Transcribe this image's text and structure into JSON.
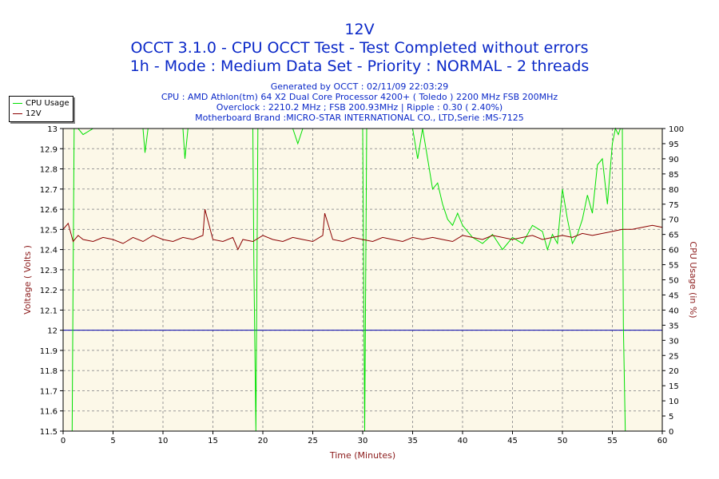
{
  "titles": {
    "main": "12V",
    "line2": "OCCT 3.1.0 - CPU OCCT Test - Test Completed without errors",
    "line3": "1h - Mode : Medium Data Set - Priority : NORMAL - 2 threads"
  },
  "info": {
    "generated": "Generated by OCCT : 02/11/09 22:03:29",
    "cpu": "CPU : AMD Athlon(tm) 64 X2 Dual Core Processor 4200+ ( Toledo ) 2200 MHz FSB 200MHz",
    "overclock": "Overclock : 2210.2 MHz ; FSB 200.93MHz | Ripple : 0.30 ( 2.40%)",
    "motherboard": "Motherboard Brand :MICRO-STAR INTERNATIONAL CO., LTD,Serie :MS-7125"
  },
  "colors": {
    "title": "#0a28c8",
    "axis_label": "#8b1a1a",
    "cpu_line": "#00e000",
    "volt_line": "#8b0000",
    "ref_line": "#0000aa",
    "plot_bg": "#fcf8e8"
  },
  "legend": {
    "items": [
      {
        "label": "CPU Usage",
        "color": "#00e000"
      },
      {
        "label": "12V",
        "color": "#8b0000"
      }
    ]
  },
  "chart_data": {
    "type": "line",
    "xlabel": "Time (Minutes)",
    "ylabel_left": "Voltage ( Volts )",
    "ylabel_right": "CPU Usage (in %)",
    "xlim": [
      0,
      60
    ],
    "ylim_left": [
      11.5,
      13
    ],
    "ylim_right": [
      0,
      100
    ],
    "x_ticks": [
      0,
      5,
      10,
      15,
      20,
      25,
      30,
      35,
      40,
      45,
      50,
      55,
      60
    ],
    "y_ticks_left": [
      11.5,
      11.6,
      11.7,
      11.8,
      11.9,
      12,
      12.1,
      12.2,
      12.3,
      12.4,
      12.5,
      12.6,
      12.7,
      12.8,
      12.9,
      13
    ],
    "y_tick_labels_left": [
      "11.5",
      "11.6",
      "11.7",
      "11.8",
      "11.9",
      "12",
      "12.1",
      "12.2",
      "12.3",
      "12.4",
      "12.5",
      "12.6",
      "12.7",
      "12.8",
      "12.9",
      "13"
    ],
    "y_ticks_right": [
      0,
      5,
      10,
      15,
      20,
      25,
      30,
      35,
      40,
      45,
      50,
      55,
      60,
      65,
      70,
      75,
      80,
      85,
      90,
      95,
      100
    ],
    "grid": true,
    "reference_line": {
      "axis": "left",
      "value": 12
    },
    "series": [
      {
        "name": "CPU Usage",
        "axis": "right",
        "x": [
          0,
          0.5,
          0.9,
          1.0,
          1.1,
          1.2,
          1.5,
          2,
          3,
          4,
          5,
          6,
          7,
          8,
          8.2,
          8.5,
          9,
          10,
          11,
          12,
          12.2,
          12.5,
          13,
          14,
          15,
          16,
          17,
          18,
          19,
          19.1,
          19.3,
          19.5,
          19.7,
          20,
          21,
          22,
          23,
          23.5,
          24,
          25,
          26,
          27,
          28,
          29,
          30,
          30.2,
          30.4,
          30.6,
          31,
          32,
          33,
          34,
          35,
          35.5,
          36,
          36.5,
          37,
          37.5,
          38,
          38.5,
          39,
          39.5,
          40,
          41,
          42,
          43,
          44,
          45,
          46,
          47,
          48,
          48.5,
          49,
          49.5,
          50,
          50.5,
          51,
          51.5,
          52,
          52.5,
          53,
          53.5,
          54,
          54.5,
          55,
          55.3,
          55.6,
          55.8,
          56,
          56.1,
          56.3,
          56.5,
          57,
          58,
          59,
          60
        ],
        "values": [
          0,
          0,
          0,
          50,
          100,
          100,
          100,
          98,
          100,
          100,
          100,
          100,
          100,
          100,
          92,
          100,
          100,
          100,
          100,
          100,
          90,
          100,
          100,
          100,
          100,
          100,
          100,
          100,
          100,
          55,
          0,
          100,
          100,
          100,
          100,
          100,
          100,
          95,
          100,
          100,
          100,
          100,
          100,
          100,
          100,
          0,
          100,
          100,
          100,
          100,
          100,
          100,
          100,
          90,
          100,
          90,
          80,
          82,
          75,
          70,
          68,
          72,
          68,
          64,
          62,
          65,
          60,
          64,
          62,
          68,
          66,
          60,
          65,
          62,
          80,
          70,
          62,
          65,
          70,
          78,
          72,
          88,
          90,
          75,
          95,
          100,
          98,
          100,
          100,
          35,
          0,
          0,
          0,
          0,
          0,
          0
        ]
      },
      {
        "name": "12V",
        "axis": "left",
        "x": [
          0,
          0.5,
          1,
          1.5,
          2,
          3,
          4,
          5,
          6,
          7,
          8,
          9,
          10,
          11,
          12,
          13,
          14,
          14.2,
          15,
          16,
          17,
          17.5,
          18,
          19,
          20,
          21,
          22,
          23,
          24,
          25,
          26,
          26.2,
          27,
          28,
          29,
          30,
          31,
          32,
          33,
          34,
          35,
          36,
          37,
          38,
          39,
          40,
          41,
          42,
          43,
          44,
          45,
          46,
          47,
          48,
          49,
          50,
          51,
          52,
          53,
          54,
          55,
          56,
          57,
          58,
          59,
          60
        ],
        "values": [
          12.5,
          12.53,
          12.44,
          12.47,
          12.45,
          12.44,
          12.46,
          12.45,
          12.43,
          12.46,
          12.44,
          12.47,
          12.45,
          12.44,
          12.46,
          12.45,
          12.47,
          12.6,
          12.45,
          12.44,
          12.46,
          12.4,
          12.45,
          12.44,
          12.47,
          12.45,
          12.44,
          12.46,
          12.45,
          12.44,
          12.47,
          12.58,
          12.45,
          12.44,
          12.46,
          12.45,
          12.44,
          12.46,
          12.45,
          12.44,
          12.46,
          12.45,
          12.46,
          12.45,
          12.44,
          12.47,
          12.46,
          12.45,
          12.47,
          12.46,
          12.45,
          12.46,
          12.47,
          12.45,
          12.46,
          12.47,
          12.46,
          12.48,
          12.47,
          12.48,
          12.49,
          12.5,
          12.5,
          12.51,
          12.52,
          12.51
        ]
      }
    ]
  }
}
